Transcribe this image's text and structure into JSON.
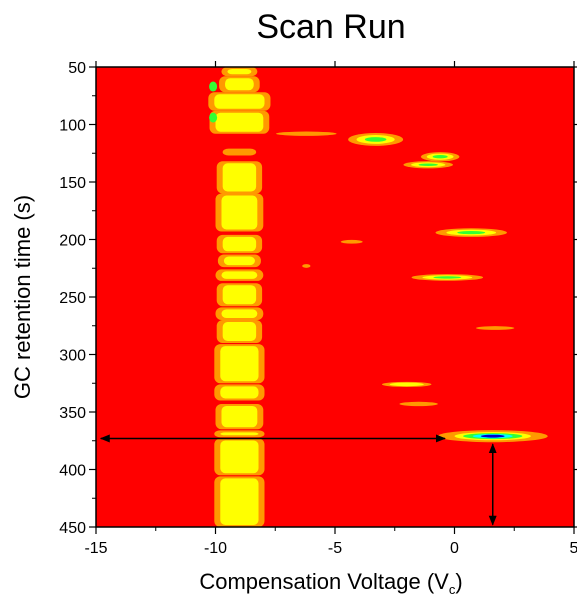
{
  "chart_data": {
    "type": "heatmap",
    "title": "Scan Run",
    "xlabel": "Compensation Voltage (V",
    "xlabel_sub": "c",
    "xlabel_end": ")",
    "ylabel": "GC retention time (s)",
    "xlim": [
      -15,
      5
    ],
    "ylim": [
      50,
      450
    ],
    "y_inverted": true,
    "x_ticks": [
      -15,
      -10,
      -5,
      0,
      5
    ],
    "x_tick_labels": [
      "-15",
      "-10",
      "-5",
      "0",
      "5"
    ],
    "y_ticks": [
      50,
      100,
      150,
      200,
      250,
      300,
      350,
      400,
      450
    ],
    "y_tick_labels": [
      "50",
      "100",
      "150",
      "200",
      "250",
      "300",
      "350",
      "400",
      "450"
    ],
    "background_color": "#ff0000",
    "colors": {
      "low": "#ff0000",
      "orange": "#ff9900",
      "yellow": "#ffff00",
      "green": "#33ff33",
      "cyan": "#00ffff",
      "blue": "#0000cc"
    },
    "main_band": {
      "x_center": -9.0,
      "segments": [
        {
          "y0": 50,
          "y1": 58,
          "half_width": 0.5,
          "level": "yellow"
        },
        {
          "y0": 58,
          "y1": 72,
          "half_width": 0.6,
          "level": "yellow"
        },
        {
          "y0": 72,
          "y1": 88,
          "half_width": 1.05,
          "level": "yellow"
        },
        {
          "y0": 88,
          "y1": 108,
          "half_width": 1.0,
          "level": "yellow"
        },
        {
          "y0": 121,
          "y1": 127,
          "half_width": 0.45,
          "level": "orange"
        },
        {
          "y0": 132,
          "y1": 160,
          "half_width": 0.7,
          "level": "yellow"
        },
        {
          "y0": 160,
          "y1": 193,
          "half_width": 0.75,
          "level": "yellow"
        },
        {
          "y0": 196,
          "y1": 212,
          "half_width": 0.7,
          "level": "yellow"
        },
        {
          "y0": 213,
          "y1": 224,
          "half_width": 0.65,
          "level": "yellow"
        },
        {
          "y0": 226,
          "y1": 236,
          "half_width": 0.75,
          "level": "yellow"
        },
        {
          "y0": 238,
          "y1": 258,
          "half_width": 0.7,
          "level": "yellow"
        },
        {
          "y0": 259,
          "y1": 270,
          "half_width": 0.75,
          "level": "yellow"
        },
        {
          "y0": 270,
          "y1": 290,
          "half_width": 0.7,
          "level": "yellow"
        },
        {
          "y0": 291,
          "y1": 325,
          "half_width": 0.8,
          "level": "yellow"
        },
        {
          "y0": 326,
          "y1": 340,
          "half_width": 0.8,
          "level": "yellow"
        },
        {
          "y0": 343,
          "y1": 365,
          "half_width": 0.75,
          "level": "yellow"
        },
        {
          "y0": 366,
          "y1": 372,
          "half_width": 0.8,
          "level": "yellow"
        },
        {
          "y0": 373,
          "y1": 405,
          "half_width": 0.8,
          "level": "yellow"
        },
        {
          "y0": 406,
          "y1": 450,
          "half_width": 0.8,
          "level": "yellow"
        }
      ],
      "hot_spots": [
        {
          "x": -10.1,
          "y": 67,
          "level": "green"
        },
        {
          "x": -10.1,
          "y": 94,
          "level": "green"
        }
      ]
    },
    "peaks": [
      {
        "x": -6.2,
        "y": 108,
        "rx": 1.1,
        "ry": 1.5,
        "level": "orange"
      },
      {
        "x": -3.3,
        "y": 113,
        "rx": 1.0,
        "ry": 4.5,
        "level": "yellow",
        "core": "green"
      },
      {
        "x": -0.6,
        "y": 128,
        "rx": 0.7,
        "ry": 3.2,
        "level": "yellow",
        "core": "green"
      },
      {
        "x": -1.1,
        "y": 135,
        "rx": 0.9,
        "ry": 2.5,
        "level": "yellow",
        "core": "green"
      },
      {
        "x": 0.7,
        "y": 194,
        "rx": 1.3,
        "ry": 3.0,
        "level": "yellow",
        "core": "green"
      },
      {
        "x": -4.3,
        "y": 202,
        "rx": 0.4,
        "ry": 1.0,
        "level": "orange"
      },
      {
        "x": -6.2,
        "y": 223,
        "rx": 0.15,
        "ry": 1.0,
        "level": "orange"
      },
      {
        "x": -0.3,
        "y": 233,
        "rx": 1.3,
        "ry": 2.3,
        "level": "yellow",
        "core": "green"
      },
      {
        "x": 1.7,
        "y": 277,
        "rx": 0.7,
        "ry": 1.0,
        "level": "orange"
      },
      {
        "x": -2.0,
        "y": 326,
        "rx": 0.9,
        "ry": 1.8,
        "level": "yellow"
      },
      {
        "x": -1.5,
        "y": 343,
        "rx": 0.7,
        "ry": 1.5,
        "level": "orange"
      },
      {
        "x": 1.6,
        "y": 371,
        "rx": 2.0,
        "ry": 4.2,
        "level": "yellow",
        "core": "blue"
      }
    ],
    "arrows": [
      {
        "from": [
          -0.4,
          373
        ],
        "to": [
          -14.8,
          373
        ],
        "double_headed": true
      },
      {
        "from": [
          1.6,
          378
        ],
        "to": [
          1.6,
          448
        ],
        "double_headed": true
      }
    ]
  }
}
